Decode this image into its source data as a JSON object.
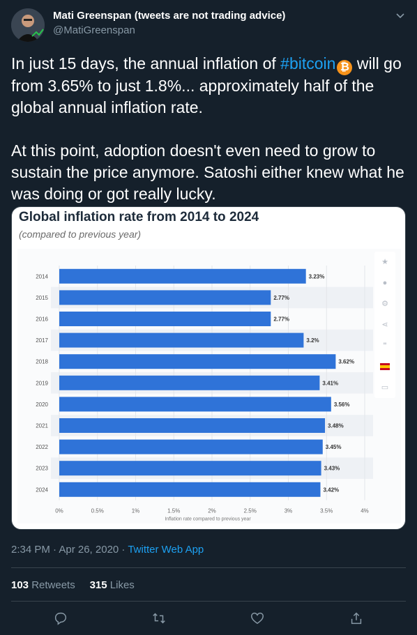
{
  "user": {
    "display_name": "Mati Greenspan (tweets are not trading advice)",
    "handle": "@MatiGreenspan"
  },
  "tweet": {
    "text_before": "In just 15 days, the annual inflation of ",
    "hashtag": "#bitcoin",
    "btc_symbol": "₿",
    "text_after": " will go from 3.65% to just 1.8%... approximately half of the global annual inflation rate.\n\nAt this point, adoption doesn't even need to grow to sustain the price anymore. Satoshi either knew what he was doing or got really lucky."
  },
  "chart_data": {
    "type": "bar",
    "orientation": "horizontal",
    "title": "Global inflation rate from 2014 to 2024",
    "subtitle": "(compared to previous year)",
    "xlabel": "Inflation rate compared to previous year",
    "ylabel": "",
    "categories": [
      "2014",
      "2015",
      "2016",
      "2017",
      "2018",
      "2019",
      "2020",
      "2021",
      "2022",
      "2023",
      "2024"
    ],
    "values": [
      3.23,
      2.77,
      2.77,
      3.2,
      3.62,
      3.41,
      3.56,
      3.48,
      3.45,
      3.43,
      3.42
    ],
    "value_labels": [
      "3.23%",
      "2.77%",
      "2.77%",
      "3.2%",
      "3.62%",
      "3.41%",
      "3.56%",
      "3.48%",
      "3.45%",
      "3.43%",
      "3.42%"
    ],
    "xticks": [
      "0%",
      "0.5%",
      "1%",
      "1.5%",
      "2%",
      "2.5%",
      "3%",
      "3.5%",
      "4%"
    ],
    "xlim": [
      0,
      4
    ],
    "bar_color": "#2f73d8",
    "grid": true
  },
  "meta": {
    "time": "2:34 PM · Apr 26, 2020 · ",
    "app": "Twitter Web App"
  },
  "stats": {
    "retweets_count": "103",
    "retweets_label": " Retweets",
    "likes_count": "315",
    "likes_label": " Likes"
  },
  "colors": {
    "background": "#15202b",
    "accent": "#1da1f2",
    "muted": "#8899a6"
  }
}
